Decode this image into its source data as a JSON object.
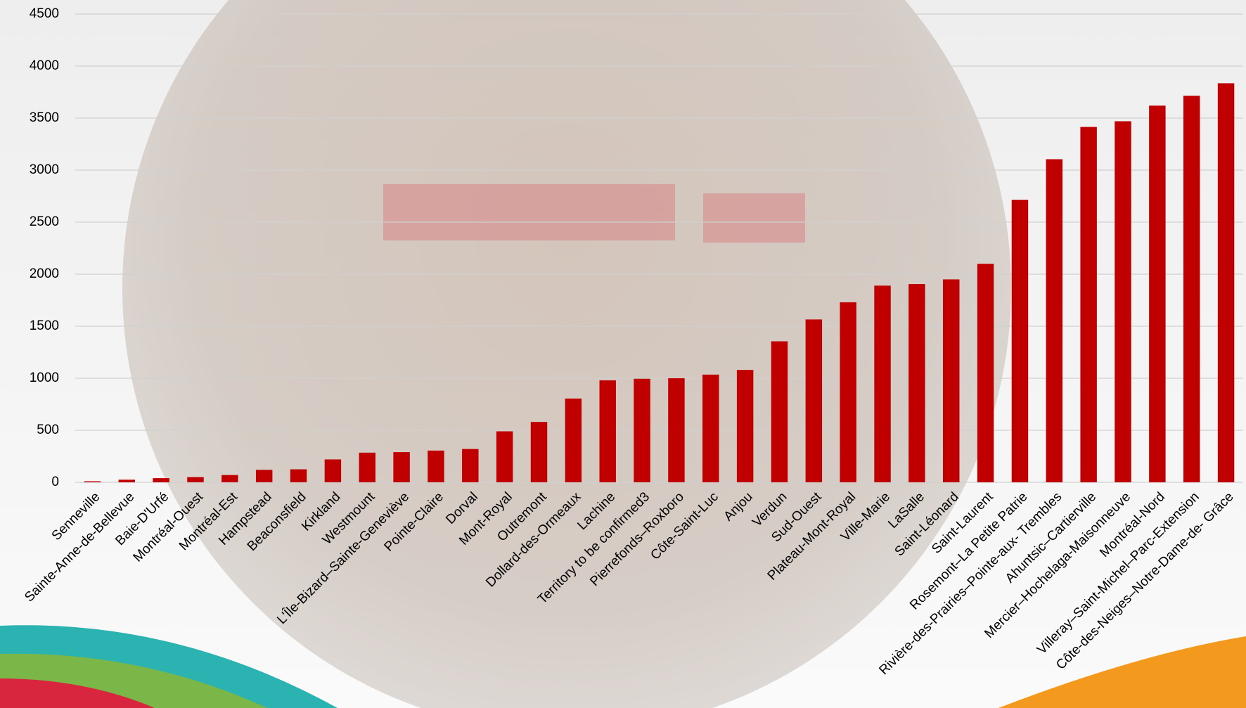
{
  "chart_data": {
    "type": "bar",
    "categories": [
      "Senneville",
      "Sainte-Anne-de-Bellevue",
      "Baie-D'Urfé",
      "Montréal-Ouest",
      "Montréal-Est",
      "Hampstead",
      "Beaconsfield",
      "Kirkland",
      "Westmount",
      "L'Île-Bizard–Sainte-Geneviève",
      "Pointe-Claire",
      "Dorval",
      "Mont-Royal",
      "Outremont",
      "Dollard-des-Ormeaux",
      "Lachine",
      "Territory to be confirmed3",
      "Pierrefonds–Roxboro",
      "Côte-Saint-Luc",
      "Anjou",
      "Verdun",
      "Sud-Ouest",
      "Plateau-Mont-Royal",
      "Ville-Marie",
      "LaSalle",
      "Saint-Léonard",
      "Saint-Laurent",
      "Rosemont–La Petite Patrie",
      "Rivière-des-Prairies–Pointe-aux- Trembles",
      "Ahuntsic–Cartierville",
      "Mercier–Hochelaga-Maisonneuve",
      "Montréal-Nord",
      "Villeray–Saint-Michel–Parc-Extension",
      "Côte-des-Neiges–Notre-Dame-de- Grâce"
    ],
    "values": [
      10,
      25,
      40,
      50,
      70,
      120,
      125,
      220,
      285,
      290,
      305,
      320,
      490,
      580,
      805,
      980,
      995,
      1000,
      1035,
      1080,
      1355,
      1565,
      1730,
      1890,
      1905,
      1950,
      2100,
      2715,
      3105,
      3415,
      3470,
      3620,
      3715,
      3835
    ],
    "color": "#c00000",
    "ylim": [
      0,
      4500
    ],
    "yticks": [
      0,
      500,
      1000,
      1500,
      2000,
      2500,
      3000,
      3500,
      4000,
      4500
    ],
    "grid": true
  }
}
